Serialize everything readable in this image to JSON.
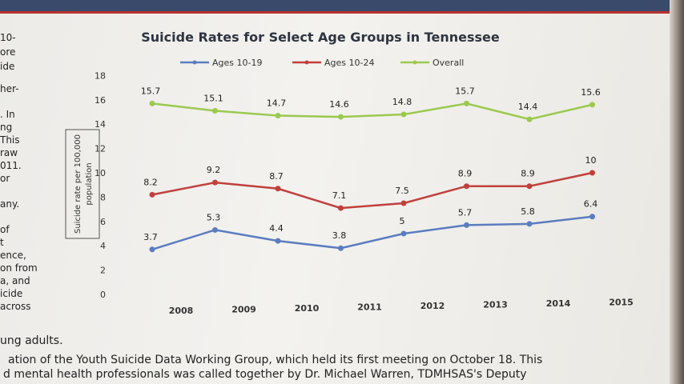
{
  "left_fragments": [
    "10-",
    "ore",
    "ide",
    "her-",
    ". In",
    "ng",
    "This",
    "raw",
    "011.",
    "or",
    "any.",
    "of",
    "t",
    "ence,",
    "on from",
    "a, and",
    "icide",
    "across",
    "ung adults."
  ],
  "bottom_lines": [
    "ation of the Youth Suicide Data Working Group, which held its first meeting on October 18. This",
    "d mental health professionals was called together by Dr. Michael Warren, TDMHSAS's Deputy"
  ],
  "chart_data": {
    "type": "line",
    "title": "Suicide Rates for Select Age Groups in Tennessee",
    "xlabel": "",
    "ylabel": [
      "Suicide rate per 100,000",
      "population"
    ],
    "x": [
      "2008",
      "2009",
      "2010",
      "2011",
      "2012",
      "2013",
      "2014",
      "2015"
    ],
    "ylim": [
      0,
      18
    ],
    "yticks": [
      0,
      2,
      4,
      6,
      8,
      10,
      12,
      14,
      16,
      18
    ],
    "legend_position": "top",
    "grid": false,
    "series": [
      {
        "name": "Ages 10-19",
        "color": "#5b7cc0",
        "values": [
          3.7,
          5.3,
          4.4,
          3.8,
          5,
          5.7,
          5.8,
          6.4
        ],
        "labels": [
          "3.7",
          "5.3",
          "4.4",
          "3.8",
          "5",
          "5.7",
          "5.8",
          "6.4"
        ]
      },
      {
        "name": "Ages 10-24",
        "color": "#c0403c",
        "values": [
          8.2,
          9.2,
          8.7,
          7.1,
          7.5,
          8.9,
          8.9,
          10
        ],
        "labels": [
          "8.2",
          "9.2",
          "8.7",
          "7.1",
          "7.5",
          "8.9",
          "8.9",
          "10"
        ]
      },
      {
        "name": "Overall",
        "color": "#9bc94f",
        "values": [
          15.7,
          15.1,
          14.7,
          14.6,
          14.8,
          15.7,
          14.4,
          15.6
        ],
        "labels": [
          "15.7",
          "15.1",
          "14.7",
          "14.6",
          "14.8",
          "15.7",
          "14.4",
          "15.6"
        ]
      }
    ]
  }
}
